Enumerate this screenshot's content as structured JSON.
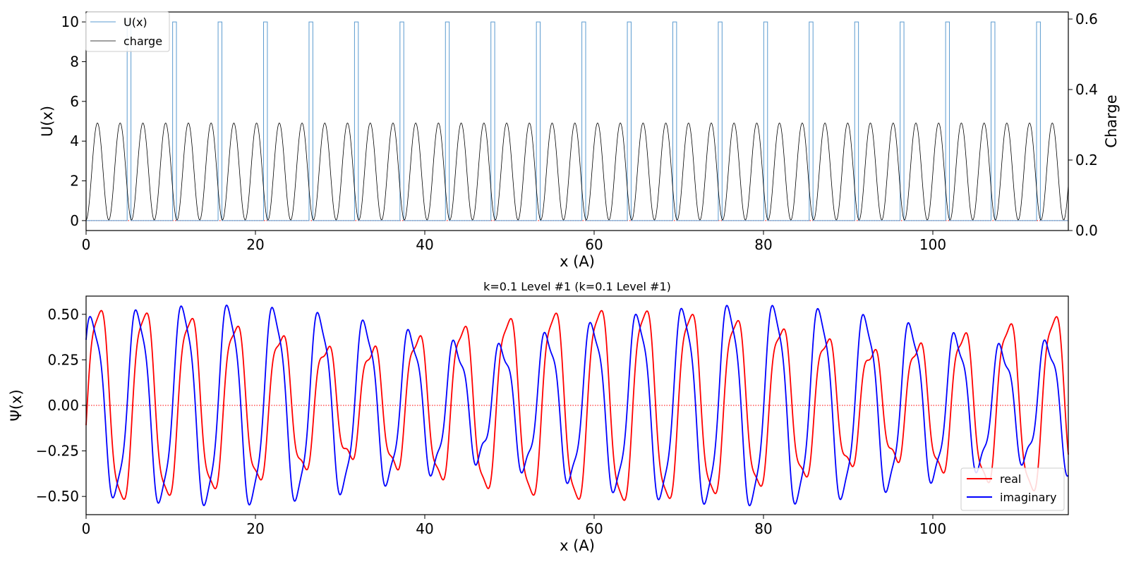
{
  "chart_data": [
    {
      "type": "line",
      "xlabel": "x (A)",
      "ylabel": "U(x)",
      "y2label": "Charge",
      "xlim": [
        0,
        116
      ],
      "ylim": [
        -0.5,
        10.5
      ],
      "y2lim": [
        0.0,
        0.62
      ],
      "xticks": [
        "0",
        "20",
        "40",
        "60",
        "80",
        "100"
      ],
      "yticks": [
        "0",
        "2",
        "4",
        "6",
        "8",
        "10"
      ],
      "y2ticks": [
        "0.0",
        "0.2",
        "0.4",
        "0.6"
      ],
      "grid": false,
      "legend_position": "upper-left",
      "series": [
        {
          "name": "U(x)",
          "color": "#5b9bd0",
          "kind": "barrier-potential",
          "period": 5.37,
          "first_barrier_start": 4.85,
          "barrier_width": 0.45,
          "low": 0,
          "high": 10
        },
        {
          "name": "charge",
          "color": "#000000",
          "axis": "right",
          "kind": "oscillation",
          "min": 0.03,
          "max": 0.305,
          "period": 2.685,
          "phase_zero_x": 1.34
        }
      ],
      "reference_line": {
        "y": 0,
        "color": "#ff0000",
        "style": "dotted"
      }
    },
    {
      "type": "line",
      "title": "k=0.1 Level #1 (k=0.1 Level #1)",
      "xlabel": "x (A)",
      "ylabel": "Ψ(x)",
      "xlim": [
        0,
        116
      ],
      "ylim": [
        -0.6,
        0.6
      ],
      "xticks": [
        "0",
        "20",
        "40",
        "60",
        "80",
        "100"
      ],
      "yticks": [
        "−0.50",
        "−0.25",
        "0.00",
        "0.25",
        "0.50"
      ],
      "grid": false,
      "legend_position": "lower-right",
      "series": [
        {
          "name": "real",
          "color": "#ff0000",
          "kind": "bloch-wave",
          "part": "real",
          "amplitude": 0.55,
          "k_fast": 1.1699,
          "k_slow": 0.1,
          "bump": 0.06
        },
        {
          "name": "imaginary",
          "color": "#0000ff",
          "kind": "bloch-wave",
          "part": "imag",
          "amplitude": 0.55,
          "k_fast": 1.1699,
          "k_slow": 0.1,
          "bump": 0.06
        }
      ],
      "reference_line": {
        "y": 0,
        "color": "#ff0000",
        "style": "dotted"
      }
    }
  ]
}
